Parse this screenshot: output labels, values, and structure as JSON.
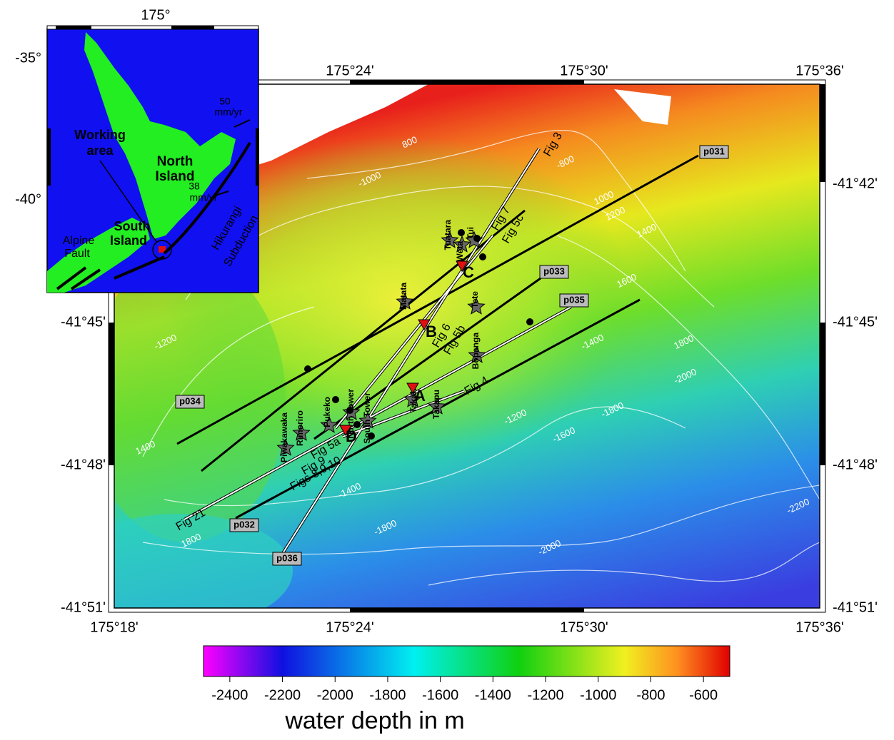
{
  "map": {
    "top_lon_labels": [
      "175°24'",
      "175°30'",
      "175°36'"
    ],
    "bottom_lon_labels": [
      "175°18'",
      "175°24'",
      "175°30'",
      "175°36'"
    ],
    "left_lat_labels": [
      "-41°45'",
      "-41°48'",
      "-41°51'"
    ],
    "right_lat_labels": [
      "-41°42'",
      "-41°45'",
      "-41°48'",
      "-41°51'"
    ],
    "profiles": [
      "p031",
      "p032",
      "p033",
      "p034",
      "p035",
      "p036"
    ],
    "figure_lines": [
      "Fig 3",
      "Fig 7",
      "Fig 5c",
      "Fig 6",
      "Fig 5b",
      "Fig 4",
      "Fig 5a",
      "Fig 9",
      "Figs 8,9,10",
      "Fig 21"
    ],
    "sites": [
      "A",
      "B",
      "C",
      "D"
    ],
    "stations": [
      "Tuatara",
      "Weta",
      "Tui",
      "Matata",
      "Tete",
      "Bopanga",
      "Takapu",
      "Takahe",
      "North Tower",
      "South Tower",
      "Pukeko",
      "Rimoriro",
      "Piwakawaka"
    ],
    "contour_labels": [
      "-1000",
      "800",
      "-800",
      "1000",
      "1200",
      "1400",
      "1600",
      "-1200",
      "1400",
      "1800",
      "-2000",
      "-1400",
      "-1200",
      "-1800",
      "-1600",
      "-2000",
      "-2200",
      "1800",
      "-1400",
      "-1800"
    ]
  },
  "inset": {
    "lon_label": "175°",
    "lat_labels": [
      "-35°",
      "-40°"
    ],
    "labels": [
      "50",
      "mm/yr",
      "Working",
      "area",
      "North",
      "Island",
      "38",
      "mm/yr",
      "South",
      "Island",
      "Alpine",
      "Fault",
      "Hikurangi",
      "Subduction"
    ]
  },
  "colorbar": {
    "title": "water depth in m",
    "range": [
      -2500,
      -500
    ],
    "ticks": [
      -2400,
      -2200,
      -2000,
      -1800,
      -1600,
      -1400,
      -1200,
      -1000,
      -800,
      -600
    ]
  }
}
